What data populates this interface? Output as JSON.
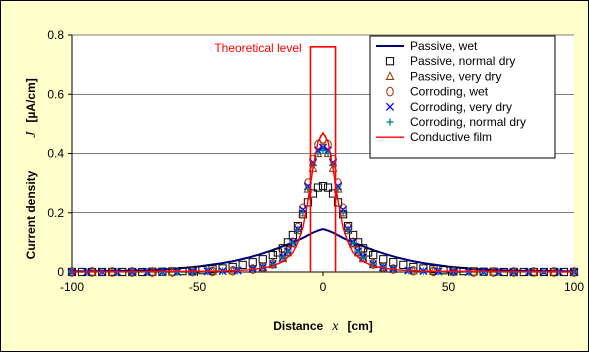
{
  "chart_data": {
    "type": "scatter",
    "title": "",
    "xlabel": "Distance",
    "xlabel_symbol": "x",
    "xlabel_unit": "[cm]",
    "ylabel": "Current density",
    "ylabel_symbol": "J",
    "ylabel_unit": "[µA/cm]",
    "xlim": [
      -100,
      100
    ],
    "ylim": [
      0,
      0.8
    ],
    "xticks": [
      -100,
      -50,
      0,
      50,
      100
    ],
    "yticks": [
      0,
      0.2,
      0.4,
      0.6,
      0.8
    ],
    "ytick_labels": [
      "0",
      "0.2",
      "0.4",
      "0.6",
      "0.8"
    ],
    "grid": "horizontal",
    "legend_position": "top-right",
    "annotation": "Theoretical level",
    "colors": {
      "background": "#ffffcc",
      "plot_area": "#ffffff",
      "navy": "#000080",
      "blue": "#0000ff",
      "teal": "#008080",
      "red": "#ff0000",
      "dark_red": "#993300"
    },
    "series": [
      {
        "name": "Passive, wet",
        "style": "line",
        "color": "#000080",
        "x": [
          -100,
          -90,
          -80,
          -70,
          -60,
          -50,
          -40,
          -35,
          -30,
          -25,
          -20,
          -15,
          -12,
          -10,
          -8,
          -6,
          -4,
          -2,
          0,
          2,
          4,
          6,
          8,
          10,
          12,
          15,
          20,
          25,
          30,
          35,
          40,
          50,
          60,
          70,
          80,
          90,
          100
        ],
        "y": [
          0.002,
          0.003,
          0.004,
          0.006,
          0.01,
          0.018,
          0.03,
          0.038,
          0.048,
          0.06,
          0.074,
          0.09,
          0.1,
          0.107,
          0.115,
          0.124,
          0.133,
          0.14,
          0.145,
          0.14,
          0.133,
          0.124,
          0.115,
          0.107,
          0.1,
          0.09,
          0.074,
          0.06,
          0.048,
          0.038,
          0.03,
          0.018,
          0.01,
          0.006,
          0.004,
          0.003,
          0.002
        ]
      },
      {
        "name": "Passive, normal dry",
        "style": "square",
        "color": "#000000",
        "x": [
          -100,
          -96,
          -92,
          -88,
          -84,
          -80,
          -76,
          -72,
          -68,
          -64,
          -60,
          -56,
          -52,
          -48,
          -44,
          -40,
          -36,
          -32,
          -28,
          -24,
          -20,
          -18,
          -16,
          -14,
          -12,
          -10,
          -8,
          -6,
          -4,
          -2,
          0,
          2,
          4,
          6,
          8,
          10,
          12,
          14,
          16,
          18,
          20,
          24,
          28,
          32,
          36,
          40,
          44,
          48,
          52,
          56,
          60,
          64,
          68,
          72,
          76,
          80,
          84,
          88,
          92,
          96,
          100
        ],
        "y": [
          0,
          0,
          0,
          0,
          0,
          0,
          0,
          0,
          0.001,
          0.001,
          0.002,
          0.003,
          0.004,
          0.006,
          0.009,
          0.012,
          0.017,
          0.024,
          0.033,
          0.043,
          0.057,
          0.066,
          0.08,
          0.1,
          0.125,
          0.155,
          0.195,
          0.235,
          0.265,
          0.285,
          0.29,
          0.285,
          0.265,
          0.235,
          0.195,
          0.155,
          0.125,
          0.1,
          0.08,
          0.066,
          0.057,
          0.043,
          0.033,
          0.024,
          0.017,
          0.012,
          0.009,
          0.006,
          0.004,
          0.003,
          0.002,
          0.001,
          0.001,
          0,
          0,
          0,
          0,
          0,
          0,
          0,
          0
        ]
      },
      {
        "name": "Passive, very dry",
        "style": "triangle",
        "color": "#993300",
        "x": [
          -100,
          -92,
          -84,
          -76,
          -68,
          -60,
          -52,
          -44,
          -36,
          -28,
          -24,
          -20,
          -16,
          -14,
          -12,
          -10,
          -8,
          -6,
          -4,
          -2,
          0,
          2,
          4,
          6,
          8,
          10,
          12,
          14,
          16,
          20,
          24,
          28,
          36,
          44,
          52,
          60,
          68,
          76,
          84,
          92,
          100
        ],
        "y": [
          0,
          0,
          0,
          0,
          0,
          0,
          0.001,
          0.002,
          0.004,
          0.01,
          0.015,
          0.025,
          0.045,
          0.065,
          0.095,
          0.14,
          0.2,
          0.28,
          0.35,
          0.4,
          0.42,
          0.4,
          0.35,
          0.28,
          0.2,
          0.14,
          0.095,
          0.065,
          0.045,
          0.025,
          0.015,
          0.01,
          0.004,
          0.002,
          0.001,
          0,
          0,
          0,
          0,
          0,
          0
        ]
      },
      {
        "name": "Corroding, wet",
        "style": "circle",
        "color": "#993300",
        "x": [
          -100,
          -92,
          -84,
          -76,
          -68,
          -60,
          -52,
          -44,
          -36,
          -28,
          -24,
          -20,
          -16,
          -14,
          -12,
          -10,
          -8,
          -6,
          -4,
          -2,
          0,
          2,
          4,
          6,
          8,
          10,
          12,
          14,
          16,
          20,
          24,
          28,
          36,
          44,
          52,
          60,
          68,
          76,
          84,
          92,
          100
        ],
        "y": [
          0,
          0,
          0,
          0,
          0,
          0,
          0.001,
          0.002,
          0.004,
          0.01,
          0.016,
          0.027,
          0.05,
          0.07,
          0.1,
          0.15,
          0.215,
          0.3,
          0.38,
          0.43,
          0.45,
          0.43,
          0.38,
          0.3,
          0.215,
          0.15,
          0.1,
          0.07,
          0.05,
          0.027,
          0.016,
          0.01,
          0.004,
          0.002,
          0.001,
          0,
          0,
          0,
          0,
          0,
          0
        ]
      },
      {
        "name": "Corroding, very dry",
        "style": "cross",
        "color": "#0000ff",
        "x": [
          -100,
          -94,
          -88,
          -82,
          -76,
          -70,
          -64,
          -58,
          -52,
          -46,
          -40,
          -34,
          -28,
          -24,
          -20,
          -16,
          -14,
          -12,
          -10,
          -8,
          -6,
          -4,
          -2,
          0,
          2,
          4,
          6,
          8,
          10,
          12,
          14,
          16,
          20,
          24,
          28,
          34,
          40,
          46,
          52,
          58,
          64,
          70,
          76,
          82,
          88,
          94,
          100
        ],
        "y": [
          0,
          0,
          0,
          0,
          0,
          0,
          0,
          0,
          0.001,
          0.002,
          0.003,
          0.005,
          0.01,
          0.016,
          0.027,
          0.05,
          0.07,
          0.1,
          0.145,
          0.21,
          0.29,
          0.37,
          0.41,
          0.42,
          0.41,
          0.37,
          0.29,
          0.21,
          0.145,
          0.1,
          0.07,
          0.05,
          0.027,
          0.016,
          0.01,
          0.005,
          0.003,
          0.002,
          0.001,
          0,
          0,
          0,
          0,
          0,
          0,
          0,
          0
        ]
      },
      {
        "name": "Corroding, normal dry",
        "style": "plus",
        "color": "#008080",
        "x": [
          -100,
          -94,
          -88,
          -82,
          -76,
          -70,
          -64,
          -58,
          -52,
          -46,
          -40,
          -34,
          -28,
          -24,
          -20,
          -16,
          -14,
          -12,
          -10,
          -8,
          -6,
          -4,
          -2,
          0,
          2,
          4,
          6,
          8,
          10,
          12,
          14,
          16,
          20,
          24,
          28,
          34,
          40,
          46,
          52,
          58,
          64,
          70,
          76,
          82,
          88,
          94,
          100
        ],
        "y": [
          0,
          0,
          0,
          0,
          0,
          0,
          0,
          0,
          0.001,
          0.002,
          0.003,
          0.005,
          0.01,
          0.016,
          0.026,
          0.048,
          0.068,
          0.098,
          0.14,
          0.2,
          0.28,
          0.36,
          0.4,
          0.41,
          0.4,
          0.36,
          0.28,
          0.2,
          0.14,
          0.098,
          0.068,
          0.048,
          0.026,
          0.016,
          0.01,
          0.005,
          0.003,
          0.002,
          0.001,
          0,
          0,
          0,
          0,
          0,
          0,
          0,
          0
        ]
      },
      {
        "name": "Conductive film",
        "style": "line",
        "color": "#ff0000",
        "x": [
          -100,
          -40,
          -30,
          -25,
          -20,
          -16,
          -12,
          -10,
          -8,
          -6,
          -4,
          -2,
          0,
          2,
          4,
          6,
          8,
          10,
          12,
          16,
          20,
          25,
          30,
          40,
          100
        ],
        "y": [
          0,
          0.003,
          0.007,
          0.012,
          0.02,
          0.035,
          0.065,
          0.1,
          0.15,
          0.24,
          0.35,
          0.44,
          0.47,
          0.44,
          0.35,
          0.24,
          0.15,
          0.1,
          0.065,
          0.035,
          0.02,
          0.012,
          0.007,
          0.003,
          0
        ]
      },
      {
        "name": "",
        "style": "step",
        "color": "#ff0000",
        "x": [
          -5,
          -5,
          5,
          5
        ],
        "y": [
          0,
          0.76,
          0.76,
          0
        ]
      }
    ]
  }
}
